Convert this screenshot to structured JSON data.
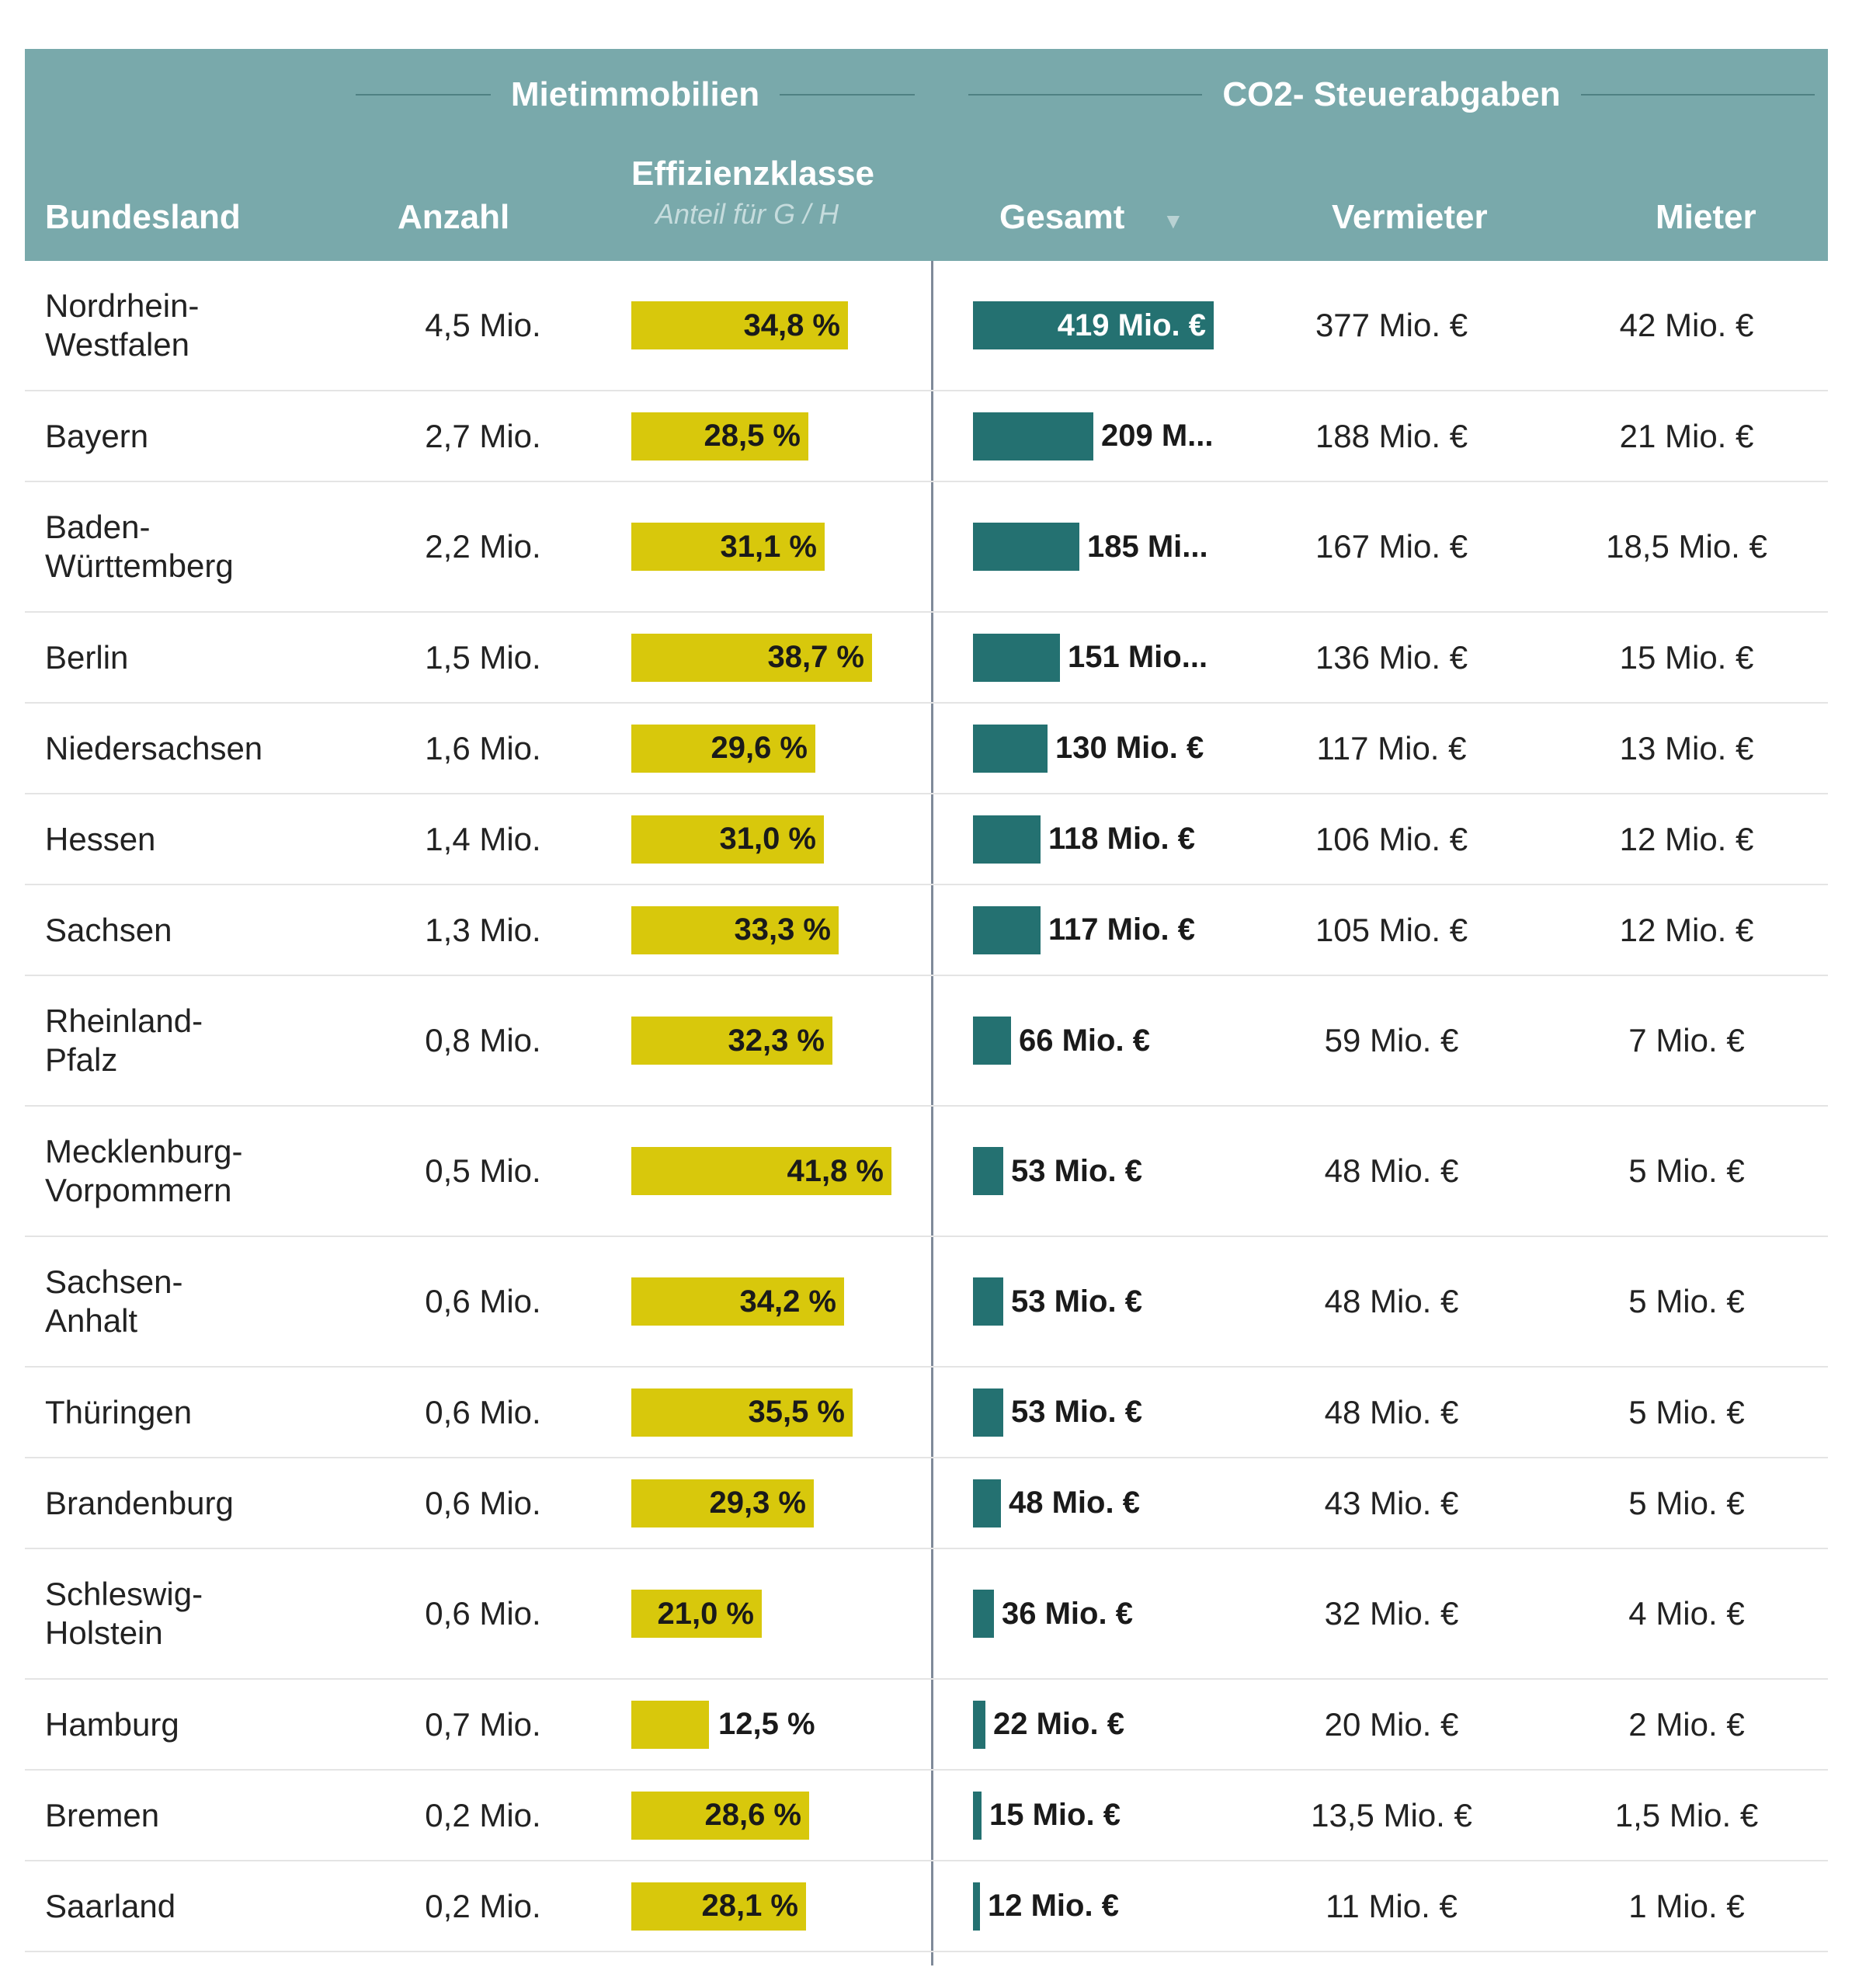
{
  "header": {
    "group_rent": "Mietimmobilien",
    "group_co2": "CO2- Steuerabgaben",
    "col_land": "Bundesland",
    "col_anzahl": "Anzahl",
    "col_eff": "Effizienzklasse",
    "col_eff_sub": "Anteil für G / H",
    "col_gesamt": "Gesamt",
    "sort_indicator": "▼",
    "col_vermieter": "Vermieter",
    "col_mieter": "Mieter"
  },
  "colors": {
    "header_bg": "#79a9ab",
    "eff_bar": "#d8c80c",
    "gesamt_bar": "#247171"
  },
  "chart_data": {
    "type": "table",
    "columns": [
      "Bundesland",
      "Anzahl",
      "Effizienzklasse",
      "Gesamt",
      "Vermieter",
      "Mieter"
    ],
    "eff_max": 41.8,
    "gesamt_max": 419,
    "rows": [
      {
        "land": "Nordrhein-\nWestfalen",
        "anzahl": "4,5 Mio.",
        "eff": 34.8,
        "eff_label": "34,8 %",
        "gesamt": 419,
        "gesamt_label": "419 Mio. €",
        "vermieter": "377 Mio. €",
        "mieter": "42 Mio. €"
      },
      {
        "land": "Bayern",
        "anzahl": "2,7 Mio.",
        "eff": 28.5,
        "eff_label": "28,5 %",
        "gesamt": 209,
        "gesamt_label": "209 M...",
        "vermieter": "188 Mio. €",
        "mieter": "21 Mio. €"
      },
      {
        "land": "Baden-\nWürttemberg",
        "anzahl": "2,2 Mio.",
        "eff": 31.1,
        "eff_label": "31,1 %",
        "gesamt": 185,
        "gesamt_label": "185 Mi...",
        "vermieter": "167 Mio. €",
        "mieter": "18,5 Mio. €"
      },
      {
        "land": "Berlin",
        "anzahl": "1,5 Mio.",
        "eff": 38.7,
        "eff_label": "38,7 %",
        "gesamt": 151,
        "gesamt_label": "151 Mio...",
        "vermieter": "136 Mio. €",
        "mieter": "15 Mio. €"
      },
      {
        "land": "Niedersachsen",
        "anzahl": "1,6 Mio.",
        "eff": 29.6,
        "eff_label": "29,6 %",
        "gesamt": 130,
        "gesamt_label": "130 Mio. €",
        "vermieter": "117 Mio. €",
        "mieter": "13 Mio. €"
      },
      {
        "land": "Hessen",
        "anzahl": "1,4 Mio.",
        "eff": 31.0,
        "eff_label": "31,0 %",
        "gesamt": 118,
        "gesamt_label": "118 Mio. €",
        "vermieter": "106 Mio. €",
        "mieter": "12 Mio. €"
      },
      {
        "land": "Sachsen",
        "anzahl": "1,3 Mio.",
        "eff": 33.3,
        "eff_label": "33,3 %",
        "gesamt": 117,
        "gesamt_label": "117 Mio. €",
        "vermieter": "105 Mio. €",
        "mieter": "12 Mio. €"
      },
      {
        "land": "Rheinland-\nPfalz",
        "anzahl": "0,8 Mio.",
        "eff": 32.3,
        "eff_label": "32,3 %",
        "gesamt": 66,
        "gesamt_label": "66 Mio. €",
        "vermieter": "59 Mio. €",
        "mieter": "7 Mio. €"
      },
      {
        "land": "Mecklenburg-\nVorpommern",
        "anzahl": "0,5 Mio.",
        "eff": 41.8,
        "eff_label": "41,8 %",
        "gesamt": 53,
        "gesamt_label": "53 Mio. €",
        "vermieter": "48 Mio. €",
        "mieter": "5 Mio. €"
      },
      {
        "land": "Sachsen-\nAnhalt",
        "anzahl": "0,6 Mio.",
        "eff": 34.2,
        "eff_label": "34,2 %",
        "gesamt": 53,
        "gesamt_label": "53 Mio. €",
        "vermieter": "48 Mio. €",
        "mieter": "5 Mio. €"
      },
      {
        "land": "Thüringen",
        "anzahl": "0,6 Mio.",
        "eff": 35.5,
        "eff_label": "35,5 %",
        "gesamt": 53,
        "gesamt_label": "53 Mio. €",
        "vermieter": "48 Mio. €",
        "mieter": "5 Mio. €"
      },
      {
        "land": "Brandenburg",
        "anzahl": "0,6 Mio.",
        "eff": 29.3,
        "eff_label": "29,3 %",
        "gesamt": 48,
        "gesamt_label": "48 Mio. €",
        "vermieter": "43 Mio. €",
        "mieter": "5 Mio. €"
      },
      {
        "land": "Schleswig-\nHolstein",
        "anzahl": "0,6 Mio.",
        "eff": 21.0,
        "eff_label": "21,0 %",
        "gesamt": 36,
        "gesamt_label": "36 Mio. €",
        "vermieter": "32 Mio. €",
        "mieter": "4 Mio. €"
      },
      {
        "land": "Hamburg",
        "anzahl": "0,7 Mio.",
        "eff": 12.5,
        "eff_label": "12,5 %",
        "gesamt": 22,
        "gesamt_label": "22 Mio. €",
        "vermieter": "20 Mio. €",
        "mieter": "2 Mio. €"
      },
      {
        "land": "Bremen",
        "anzahl": "0,2 Mio.",
        "eff": 28.6,
        "eff_label": "28,6 %",
        "gesamt": 15,
        "gesamt_label": "15 Mio. €",
        "vermieter": "13,5 Mio. €",
        "mieter": "1,5 Mio. €"
      },
      {
        "land": "Saarland",
        "anzahl": "0,2 Mio.",
        "eff": 28.1,
        "eff_label": "28,1 %",
        "gesamt": 12,
        "gesamt_label": "12 Mio. €",
        "vermieter": "11 Mio. €",
        "mieter": "1 Mio. €"
      }
    ]
  }
}
